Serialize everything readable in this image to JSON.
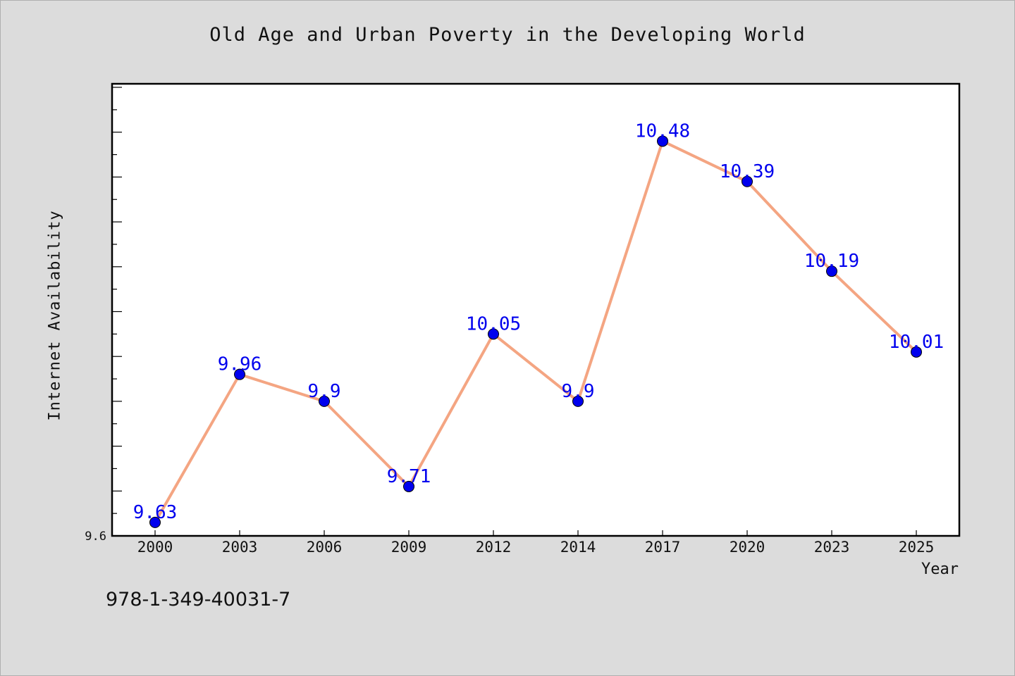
{
  "chart_data": {
    "type": "line",
    "title": "Old Age and Urban Poverty in the Developing World",
    "xlabel": "Year",
    "ylabel": "Internet Availability",
    "categories": [
      "2000",
      "2003",
      "2006",
      "2009",
      "2012",
      "2014",
      "2017",
      "2020",
      "2023",
      "2025"
    ],
    "series": [
      {
        "values": [
          9.63,
          9.96,
          9.9,
          9.71,
          10.05,
          9.9,
          10.48,
          10.39,
          10.19,
          10.01
        ],
        "labels": [
          "9.63",
          "9.96",
          "9.9",
          "9.71",
          "10.05",
          "9.9",
          "10.48",
          "10.39",
          "10.19",
          "10.01"
        ],
        "line_color": "#f4a582",
        "marker_color": "#0000ee",
        "label_color": "#0000ee"
      }
    ],
    "ylim": [
      9.6,
      10.6
    ],
    "y_tick_label": "9.6",
    "grid": false,
    "legend": "none",
    "background_color": "#dcdcdc",
    "plot_background_color": "#ffffff"
  },
  "footer": {
    "isbn": "978-1-349-40031-7"
  }
}
